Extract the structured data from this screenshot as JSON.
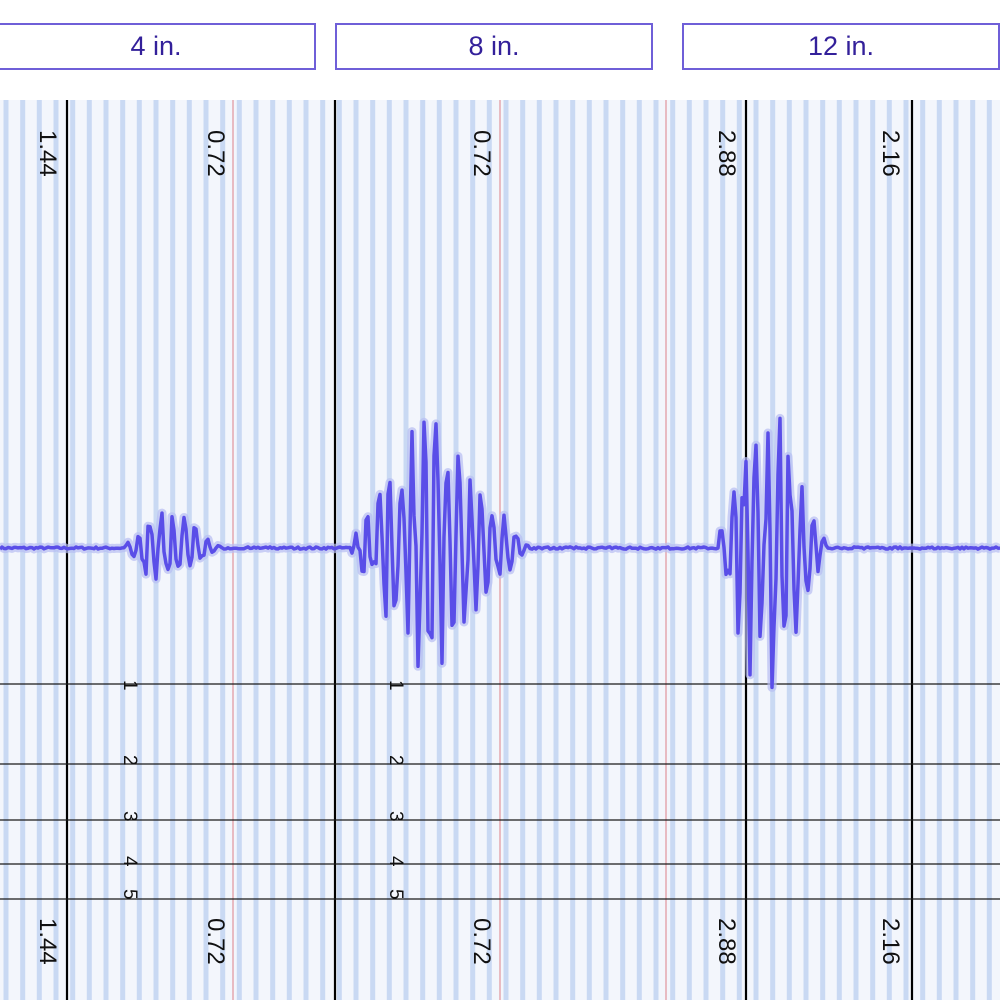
{
  "tabs": [
    {
      "label": "4 in."
    },
    {
      "label": "8 in."
    },
    {
      "label": "12 in."
    }
  ],
  "colors": {
    "trace": "#5a4ee8",
    "trace_glow": "#b7bdf2",
    "grid_light": "#c9d9f3",
    "background": "#f3f6fc",
    "major_line": "#000000",
    "marker_line": "#e4a7ae",
    "tab_border": "#6f5fd8",
    "tab_text": "#33209a"
  },
  "chart_data": {
    "type": "line",
    "title": "",
    "xlabel": "",
    "ylabel": "",
    "column_labels_top": [
      "1.44",
      "0.72",
      "0.72",
      "2.88",
      "2.16"
    ],
    "column_labels_bottom": [
      "1.44",
      "0.72",
      "0.72",
      "2.88",
      "2.16"
    ],
    "scale_ticks": [
      "1",
      "2",
      "3",
      "4",
      "5"
    ],
    "waveform": {
      "x_range": [
        0,
        1000
      ],
      "y_range": [
        -1,
        1
      ],
      "baseline": 0,
      "bursts": [
        {
          "start": 125,
          "end": 290,
          "peak": 0.27
        },
        {
          "start": 352,
          "end": 660,
          "peak": 0.92
        },
        {
          "start": 718,
          "end": 910,
          "peak": 1.0
        }
      ]
    }
  }
}
